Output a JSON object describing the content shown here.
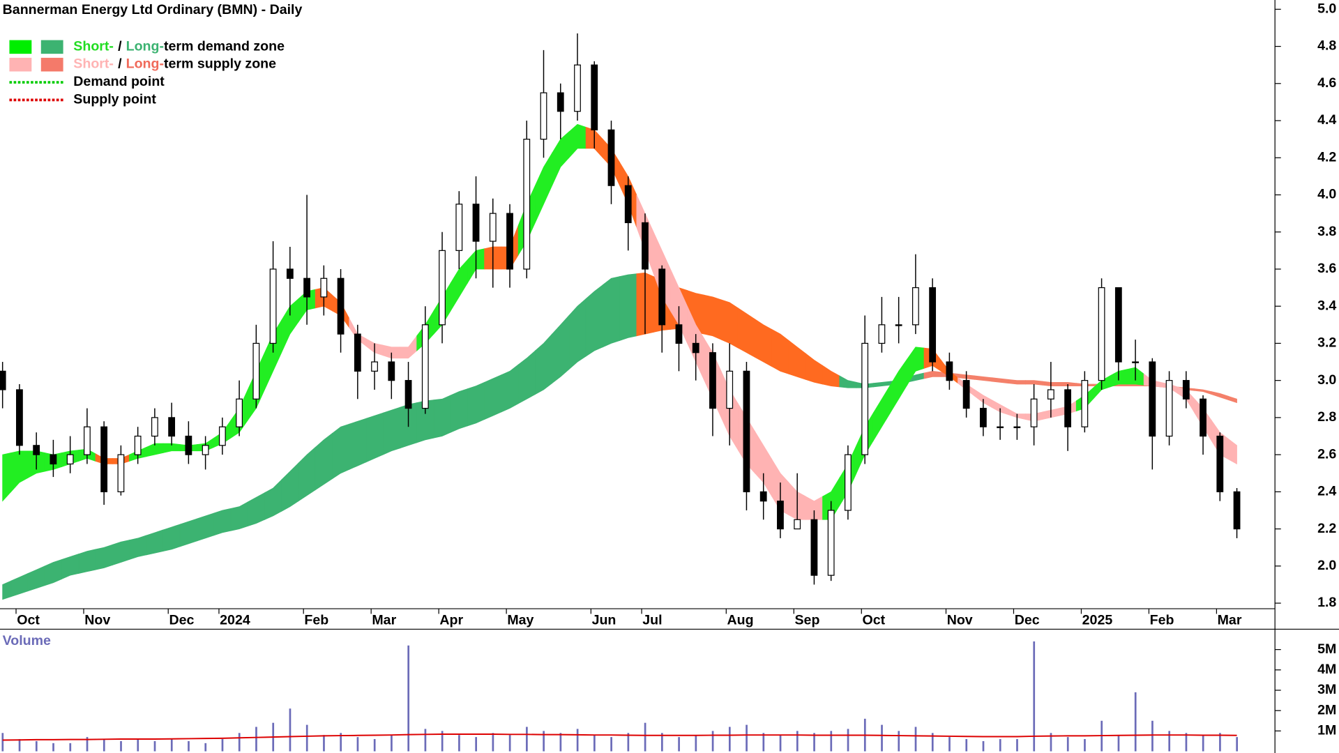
{
  "chart_data": {
    "type": "candlestick",
    "title": "Bannerman Energy Ltd Ordinary (BMN) - Daily",
    "categories": [
      null,
      "Oct",
      null,
      null,
      null,
      "Nov",
      null,
      null,
      null,
      null,
      "Dec",
      null,
      null,
      "2024",
      null,
      null,
      null,
      null,
      "Feb",
      null,
      null,
      null,
      "Mar",
      null,
      null,
      null,
      "Apr",
      null,
      null,
      null,
      "May",
      null,
      null,
      null,
      null,
      "Jun",
      null,
      null,
      "Jul",
      null,
      null,
      null,
      null,
      "Aug",
      null,
      null,
      null,
      "Sep",
      null,
      null,
      null,
      "Oct",
      null,
      null,
      null,
      null,
      "Nov",
      null,
      null,
      null,
      "Dec",
      null,
      null,
      null,
      "2025",
      null,
      null,
      null,
      "Feb",
      null,
      null,
      null,
      "Mar",
      null
    ],
    "open": [
      3.05,
      2.95,
      2.65,
      2.6,
      2.55,
      2.6,
      2.75,
      2.4,
      2.6,
      2.7,
      2.8,
      2.7,
      2.6,
      2.65,
      2.75,
      2.9,
      3.2,
      3.6,
      3.55,
      3.45,
      3.55,
      3.25,
      3.05,
      3.1,
      3.0,
      2.85,
      3.3,
      3.7,
      3.95,
      3.75,
      3.9,
      3.6,
      4.3,
      4.55,
      4.45,
      4.7,
      4.35,
      4.05,
      3.85,
      3.6,
      3.3,
      3.2,
      3.15,
      2.85,
      3.05,
      2.4,
      2.35,
      2.2,
      2.25,
      1.95,
      2.3,
      2.6,
      3.2,
      3.3,
      3.3,
      3.5,
      3.1,
      3.0,
      2.85,
      2.75,
      2.75,
      2.75,
      2.9,
      2.95,
      2.75,
      3.0,
      3.5,
      3.1,
      3.1,
      2.7,
      3.0,
      2.9,
      2.7,
      2.4
    ],
    "high": [
      3.1,
      2.98,
      2.72,
      2.68,
      2.7,
      2.85,
      2.78,
      2.65,
      2.75,
      2.85,
      2.88,
      2.78,
      2.7,
      2.8,
      3.0,
      3.3,
      3.75,
      3.72,
      4.0,
      3.62,
      3.6,
      3.3,
      3.2,
      3.15,
      3.1,
      3.4,
      3.8,
      4.02,
      4.1,
      3.98,
      3.95,
      4.4,
      4.78,
      4.6,
      4.87,
      4.72,
      4.4,
      4.1,
      3.9,
      3.62,
      3.4,
      3.25,
      3.2,
      3.2,
      3.1,
      2.5,
      2.45,
      2.5,
      2.3,
      2.35,
      2.65,
      3.35,
      3.45,
      3.45,
      3.68,
      3.55,
      3.15,
      3.05,
      2.9,
      2.85,
      2.82,
      2.98,
      3.1,
      2.98,
      3.05,
      3.55,
      3.5,
      3.22,
      3.12,
      3.05,
      3.05,
      2.92,
      2.72,
      2.42
    ],
    "low": [
      2.85,
      2.6,
      2.52,
      2.48,
      2.5,
      2.55,
      2.33,
      2.38,
      2.55,
      2.65,
      2.65,
      2.55,
      2.52,
      2.6,
      2.7,
      2.85,
      3.15,
      3.35,
      3.3,
      3.35,
      3.15,
      2.9,
      2.95,
      2.9,
      2.75,
      2.82,
      3.2,
      3.6,
      3.55,
      3.5,
      3.5,
      3.55,
      4.2,
      4.3,
      4.4,
      4.25,
      3.95,
      3.7,
      3.25,
      3.15,
      3.05,
      3.0,
      2.7,
      2.65,
      2.3,
      2.25,
      2.15,
      2.2,
      1.9,
      1.92,
      2.25,
      2.55,
      3.15,
      3.2,
      3.25,
      3.05,
      2.95,
      2.8,
      2.7,
      2.68,
      2.68,
      2.65,
      2.8,
      2.62,
      2.72,
      2.95,
      3.0,
      3.0,
      2.52,
      2.65,
      2.85,
      2.6,
      2.35,
      2.15
    ],
    "close": [
      2.95,
      2.65,
      2.6,
      2.55,
      2.6,
      2.75,
      2.4,
      2.6,
      2.7,
      2.8,
      2.7,
      2.6,
      2.65,
      2.75,
      2.9,
      3.2,
      3.6,
      3.55,
      3.45,
      3.55,
      3.25,
      3.05,
      3.1,
      3.0,
      2.85,
      3.3,
      3.7,
      3.95,
      3.75,
      3.9,
      3.6,
      4.3,
      4.55,
      4.45,
      4.7,
      4.35,
      4.05,
      3.85,
      3.6,
      3.3,
      3.2,
      3.15,
      2.85,
      3.05,
      2.4,
      2.35,
      2.2,
      2.25,
      1.95,
      2.3,
      2.6,
      3.2,
      3.3,
      3.3,
      3.5,
      3.1,
      3.0,
      2.85,
      2.75,
      2.75,
      2.75,
      2.9,
      2.95,
      2.75,
      3.0,
      3.5,
      3.1,
      3.1,
      2.7,
      3.0,
      2.9,
      2.7,
      2.4,
      2.2
    ],
    "up_color": "#ffffff",
    "down_color": "#000000",
    "ylim": [
      1.77,
      5.05
    ],
    "yticks": [
      1.8,
      {
        "value": 2,
        "label": "2.0"
      },
      2.2,
      2.4,
      2.6,
      2.8,
      {
        "value": 3,
        "label": "3.0"
      },
      3.2,
      3.4,
      3.6,
      3.8,
      {
        "value": 4,
        "label": "4.0"
      },
      4.2,
      4.4,
      4.6,
      4.8,
      {
        "value": 5,
        "label": "5.0"
      }
    ],
    "short_zone": {
      "upper": [
        2.6,
        2.62,
        2.62,
        2.6,
        2.62,
        2.63,
        2.58,
        2.58,
        2.62,
        2.66,
        2.66,
        2.65,
        2.66,
        2.72,
        2.85,
        3.05,
        3.25,
        3.4,
        3.48,
        3.5,
        3.42,
        3.25,
        3.2,
        3.18,
        3.18,
        3.3,
        3.45,
        3.6,
        3.7,
        3.72,
        3.72,
        3.95,
        4.15,
        4.3,
        4.38,
        4.35,
        4.25,
        4.1,
        3.9,
        3.7,
        3.5,
        3.3,
        3.15,
        2.95,
        2.8,
        2.65,
        2.5,
        2.4,
        2.35,
        2.4,
        2.55,
        2.75,
        2.9,
        3.05,
        3.18,
        3.17,
        3.05,
        2.98,
        2.92,
        2.87,
        2.82,
        2.82,
        2.84,
        2.86,
        2.92,
        3.0,
        3.05,
        3.07,
        3.0,
        2.98,
        2.95,
        2.85,
        2.72,
        2.65
      ],
      "lower": [
        2.35,
        2.45,
        2.5,
        2.52,
        2.55,
        2.58,
        2.55,
        2.55,
        2.58,
        2.6,
        2.62,
        2.62,
        2.62,
        2.66,
        2.72,
        2.85,
        3.05,
        3.25,
        3.38,
        3.4,
        3.35,
        3.22,
        3.15,
        3.12,
        3.12,
        3.2,
        3.3,
        3.45,
        3.6,
        3.6,
        3.6,
        3.75,
        3.95,
        4.15,
        4.25,
        4.25,
        4.15,
        3.95,
        3.7,
        3.45,
        3.3,
        3.1,
        2.9,
        2.7,
        2.55,
        2.45,
        2.3,
        2.25,
        2.25,
        2.25,
        2.4,
        2.6,
        2.75,
        2.9,
        3.05,
        3.08,
        3.02,
        2.95,
        2.88,
        2.83,
        2.8,
        2.78,
        2.8,
        2.82,
        2.85,
        2.95,
        2.98,
        2.98,
        2.97,
        2.96,
        2.9,
        2.75,
        2.6,
        2.55
      ],
      "colors": [
        "#22ee22",
        "#22ee22",
        "#22ee22",
        "#22ee22",
        "#22ee22",
        "#22ee22",
        "#ff6a20",
        "#ff6a20",
        "#22ee22",
        "#22ee22",
        "#22ee22",
        "#22ee22",
        "#22ee22",
        "#22ee22",
        "#22ee22",
        "#22ee22",
        "#22ee22",
        "#22ee22",
        "#22ee22",
        "#ff6a20",
        "#ff6a20",
        "#ffb3b3",
        "#ffb3b3",
        "#ffb3b3",
        "#ffb3b3",
        "#22ee22",
        "#22ee22",
        "#22ee22",
        "#22ee22",
        "#ff6a20",
        "#ff6a20",
        "#22ee22",
        "#22ee22",
        "#22ee22",
        "#22ee22",
        "#ff6a20",
        "#ff6a20",
        "#ff6a20",
        "#ffb3b3",
        "#ffb3b3",
        "#ffb3b3",
        "#ffb3b3",
        "#ffb3b3",
        "#ffb3b3",
        "#ffb3b3",
        "#ffb3b3",
        "#ffb3b3",
        "#ffb3b3",
        "#ffb3b3",
        "#22ee22",
        "#22ee22",
        "#22ee22",
        "#22ee22",
        "#22ee22",
        "#22ee22",
        "#ff6a20",
        "#ff6a20",
        "#ffb3b3",
        "#ffb3b3",
        "#ffb3b3",
        "#ffb3b3",
        "#ffb3b3",
        "#ffb3b3",
        "#ffb3b3",
        "#22ee22",
        "#22ee22",
        "#22ee22",
        "#22ee22",
        "#ffb3b3",
        "#ffb3b3",
        "#ffb3b3",
        "#ffb3b3",
        "#ffb3b3",
        "#ffb3b3"
      ]
    },
    "long_zone": {
      "upper": [
        1.9,
        1.94,
        1.98,
        2.02,
        2.05,
        2.08,
        2.1,
        2.13,
        2.15,
        2.18,
        2.21,
        2.24,
        2.27,
        2.3,
        2.32,
        2.37,
        2.42,
        2.51,
        2.6,
        2.68,
        2.75,
        2.78,
        2.81,
        2.84,
        2.87,
        2.89,
        2.9,
        2.94,
        2.97,
        3.01,
        3.05,
        3.12,
        3.2,
        3.3,
        3.4,
        3.48,
        3.55,
        3.57,
        3.58,
        3.54,
        3.5,
        3.47,
        3.45,
        3.42,
        3.36,
        3.3,
        3.25,
        3.18,
        3.11,
        3.05,
        3.0,
        2.98,
        2.99,
        3.0,
        3.03,
        3.05,
        3.04,
        3.03,
        3.02,
        3.01,
        3.0,
        3.0,
        2.99,
        2.99,
        2.98,
        2.98,
        2.98,
        2.98,
        2.98,
        2.97,
        2.96,
        2.95,
        2.93,
        2.9
      ],
      "lower": [
        1.82,
        1.85,
        1.88,
        1.91,
        1.95,
        1.97,
        1.99,
        2.02,
        2.05,
        2.07,
        2.09,
        2.12,
        2.15,
        2.18,
        2.2,
        2.23,
        2.27,
        2.32,
        2.38,
        2.44,
        2.5,
        2.54,
        2.58,
        2.62,
        2.65,
        2.68,
        2.7,
        2.74,
        2.77,
        2.81,
        2.85,
        2.9,
        2.95,
        3.02,
        3.1,
        3.16,
        3.2,
        3.23,
        3.25,
        3.27,
        3.28,
        3.26,
        3.24,
        3.2,
        3.15,
        3.1,
        3.05,
        3.02,
        2.99,
        2.97,
        2.96,
        2.96,
        2.97,
        2.98,
        3.0,
        3.02,
        3.02,
        3.01,
        3.0,
        2.99,
        2.98,
        2.98,
        2.97,
        2.97,
        2.97,
        2.97,
        2.97,
        2.97,
        2.97,
        2.96,
        2.95,
        2.94,
        2.91,
        2.88
      ],
      "colors": [
        "#3cb371",
        "#3cb371",
        "#3cb371",
        "#3cb371",
        "#3cb371",
        "#3cb371",
        "#3cb371",
        "#3cb371",
        "#3cb371",
        "#3cb371",
        "#3cb371",
        "#3cb371",
        "#3cb371",
        "#3cb371",
        "#3cb371",
        "#3cb371",
        "#3cb371",
        "#3cb371",
        "#3cb371",
        "#3cb371",
        "#3cb371",
        "#3cb371",
        "#3cb371",
        "#3cb371",
        "#3cb371",
        "#3cb371",
        "#3cb371",
        "#3cb371",
        "#3cb371",
        "#3cb371",
        "#3cb371",
        "#3cb371",
        "#3cb371",
        "#3cb371",
        "#3cb371",
        "#3cb371",
        "#3cb371",
        "#3cb371",
        "#ff6a20",
        "#ff6a20",
        "#ff6a20",
        "#ff6a20",
        "#ff6a20",
        "#ff6a20",
        "#ff6a20",
        "#ff6a20",
        "#ff6a20",
        "#ff6a20",
        "#ff6a20",
        "#ff6a20",
        "#3cb371",
        "#3cb371",
        "#3cb371",
        "#3cb371",
        "#3cb371",
        "#f4806a",
        "#f4806a",
        "#f4806a",
        "#f4806a",
        "#f4806a",
        "#f4806a",
        "#f4806a",
        "#f4806a",
        "#f4806a",
        "#f4806a",
        "#f4806a",
        "#f4806a",
        "#f4806a",
        "#f4806a",
        "#f4806a",
        "#f4806a",
        "#f4806a",
        "#f4806a",
        "#f4806a"
      ]
    },
    "volume": {
      "label": "Volume",
      "color": "#6b6bb8",
      "values": [
        900000,
        600000,
        500000,
        400000,
        400000,
        700000,
        600000,
        500000,
        600000,
        500000,
        600000,
        500000,
        400000,
        600000,
        900000,
        1200000,
        1400000,
        2100000,
        1300000,
        800000,
        900000,
        700000,
        600000,
        800000,
        5200000,
        1100000,
        1000000,
        800000,
        700000,
        900000,
        800000,
        1200000,
        1000000,
        900000,
        1100000,
        800000,
        700000,
        900000,
        1400000,
        900000,
        700000,
        800000,
        1000000,
        1200000,
        1300000,
        900000,
        800000,
        1000000,
        900000,
        1000000,
        1100000,
        1600000,
        1300000,
        1000000,
        1200000,
        900000,
        700000,
        600000,
        500000,
        600000,
        600000,
        5400000,
        900000,
        700000,
        600000,
        1500000,
        800000,
        2900000,
        1500000,
        1000000,
        900000,
        800000,
        900000,
        700000
      ],
      "ma_color": "#dd0000",
      "ma": [
        550000,
        560000,
        570000,
        570000,
        580000,
        580000,
        590000,
        600000,
        600000,
        600000,
        610000,
        620000,
        630000,
        640000,
        660000,
        680000,
        700000,
        720000,
        740000,
        760000,
        770000,
        780000,
        790000,
        800000,
        820000,
        830000,
        840000,
        840000,
        840000,
        840000,
        830000,
        830000,
        820000,
        820000,
        810000,
        800000,
        800000,
        790000,
        780000,
        780000,
        780000,
        780000,
        790000,
        790000,
        800000,
        800000,
        800000,
        800000,
        790000,
        790000,
        790000,
        790000,
        780000,
        770000,
        760000,
        750000,
        740000,
        730000,
        720000,
        720000,
        720000,
        740000,
        750000,
        760000,
        760000,
        770000,
        780000,
        790000,
        800000,
        800000,
        800000,
        790000,
        790000,
        780000
      ],
      "ylim": [
        0,
        6000000
      ],
      "yticks": [
        {
          "value": 1000000,
          "label": "1M"
        },
        {
          "value": 2000000,
          "label": "2M"
        },
        {
          "value": 3000000,
          "label": "3M"
        },
        {
          "value": 4000000,
          "label": "4M"
        },
        {
          "value": 5000000,
          "label": "5M"
        }
      ]
    },
    "legend": [
      {
        "swatches": [
          "#00ee00",
          "#3cb371"
        ],
        "parts": [
          {
            "text": "Short-",
            "color": "#22dd22"
          },
          {
            "text": "/",
            "color": "#000000"
          },
          {
            "text": "Long-",
            "color": "#3cb371"
          },
          {
            "text": "term demand zone",
            "color": "#000000"
          }
        ]
      },
      {
        "swatches": [
          "#ffb3b3",
          "#f47a6a"
        ],
        "parts": [
          {
            "text": "Short-",
            "color": "#ffb3b3"
          },
          {
            "text": "/",
            "color": "#000000"
          },
          {
            "text": "Long-",
            "color": "#f06a5a"
          },
          {
            "text": "term supply zone",
            "color": "#000000"
          }
        ]
      },
      {
        "line_color": "#00cc00",
        "parts": [
          {
            "text": "Demand point",
            "color": "#000000"
          }
        ]
      },
      {
        "line_color": "#dd0000",
        "parts": [
          {
            "text": "Supply point",
            "color": "#000000"
          }
        ]
      }
    ]
  }
}
